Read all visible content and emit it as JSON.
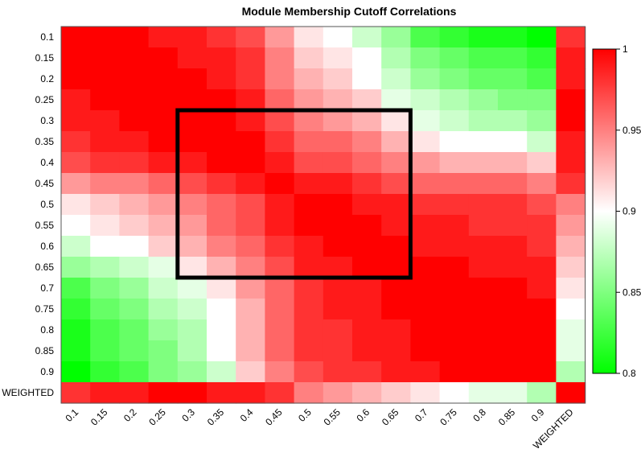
{
  "chart_data": {
    "type": "heatmap",
    "title": "Module Membership Cutoff Correlations",
    "labels": [
      "0.1",
      "0.15",
      "0.2",
      "0.25",
      "0.3",
      "0.35",
      "0.4",
      "0.45",
      "0.5",
      "0.55",
      "0.6",
      "0.65",
      "0.7",
      "0.75",
      "0.8",
      "0.85",
      "0.9",
      "WEIGHTED"
    ],
    "values": [
      [
        1.0,
        1.0,
        1.0,
        0.99,
        0.99,
        0.98,
        0.97,
        0.94,
        0.91,
        0.9,
        0.88,
        0.86,
        0.83,
        0.82,
        0.81,
        0.81,
        0.8,
        0.98
      ],
      [
        1.0,
        1.0,
        1.0,
        1.0,
        0.99,
        0.99,
        0.98,
        0.95,
        0.92,
        0.91,
        0.9,
        0.87,
        0.85,
        0.84,
        0.83,
        0.83,
        0.82,
        0.99
      ],
      [
        1.0,
        1.0,
        1.0,
        1.0,
        1.0,
        0.99,
        0.98,
        0.95,
        0.93,
        0.92,
        0.9,
        0.88,
        0.86,
        0.85,
        0.84,
        0.84,
        0.83,
        0.99
      ],
      [
        0.99,
        1.0,
        1.0,
        1.0,
        1.0,
        1.0,
        0.99,
        0.96,
        0.94,
        0.93,
        0.92,
        0.89,
        0.88,
        0.87,
        0.86,
        0.85,
        0.85,
        1.0
      ],
      [
        0.99,
        0.99,
        1.0,
        1.0,
        1.0,
        1.0,
        0.99,
        0.97,
        0.95,
        0.94,
        0.93,
        0.91,
        0.89,
        0.88,
        0.87,
        0.87,
        0.86,
        1.0
      ],
      [
        0.98,
        0.99,
        0.99,
        1.0,
        1.0,
        1.0,
        1.0,
        0.98,
        0.96,
        0.96,
        0.95,
        0.93,
        0.91,
        0.9,
        0.9,
        0.9,
        0.88,
        0.99
      ],
      [
        0.97,
        0.98,
        0.98,
        0.99,
        0.99,
        1.0,
        1.0,
        0.99,
        0.97,
        0.97,
        0.96,
        0.95,
        0.94,
        0.93,
        0.93,
        0.93,
        0.92,
        0.99
      ],
      [
        0.94,
        0.95,
        0.95,
        0.96,
        0.97,
        0.98,
        0.99,
        1.0,
        0.99,
        0.99,
        0.98,
        0.97,
        0.96,
        0.96,
        0.96,
        0.96,
        0.95,
        0.98
      ],
      [
        0.91,
        0.92,
        0.93,
        0.94,
        0.95,
        0.96,
        0.97,
        0.99,
        1.0,
        1.0,
        0.99,
        0.99,
        0.98,
        0.98,
        0.98,
        0.98,
        0.97,
        0.95
      ],
      [
        0.9,
        0.91,
        0.92,
        0.93,
        0.94,
        0.96,
        0.97,
        0.99,
        1.0,
        1.0,
        1.0,
        0.99,
        0.99,
        0.99,
        0.98,
        0.98,
        0.98,
        0.94
      ],
      [
        0.88,
        0.9,
        0.9,
        0.92,
        0.93,
        0.95,
        0.96,
        0.98,
        0.99,
        1.0,
        1.0,
        1.0,
        0.99,
        0.99,
        0.99,
        0.99,
        0.98,
        0.93
      ],
      [
        0.86,
        0.87,
        0.88,
        0.89,
        0.91,
        0.93,
        0.95,
        0.97,
        0.99,
        0.99,
        1.0,
        1.0,
        1.0,
        1.0,
        0.99,
        0.99,
        0.99,
        0.92
      ],
      [
        0.83,
        0.85,
        0.86,
        0.88,
        0.89,
        0.91,
        0.94,
        0.96,
        0.98,
        0.99,
        0.99,
        1.0,
        1.0,
        1.0,
        1.0,
        1.0,
        0.99,
        0.91
      ],
      [
        0.82,
        0.84,
        0.85,
        0.87,
        0.88,
        0.9,
        0.93,
        0.96,
        0.98,
        0.99,
        0.99,
        1.0,
        1.0,
        1.0,
        1.0,
        1.0,
        1.0,
        0.9
      ],
      [
        0.81,
        0.83,
        0.84,
        0.86,
        0.87,
        0.9,
        0.93,
        0.96,
        0.98,
        0.98,
        0.99,
        0.99,
        1.0,
        1.0,
        1.0,
        1.0,
        1.0,
        0.89
      ],
      [
        0.81,
        0.83,
        0.84,
        0.85,
        0.87,
        0.9,
        0.93,
        0.96,
        0.98,
        0.98,
        0.99,
        0.99,
        1.0,
        1.0,
        1.0,
        1.0,
        1.0,
        0.89
      ],
      [
        0.8,
        0.82,
        0.83,
        0.85,
        0.86,
        0.88,
        0.92,
        0.95,
        0.97,
        0.98,
        0.98,
        0.99,
        0.99,
        1.0,
        1.0,
        1.0,
        1.0,
        0.87
      ],
      [
        0.98,
        0.99,
        0.99,
        1.0,
        1.0,
        0.99,
        0.99,
        0.98,
        0.95,
        0.94,
        0.93,
        0.92,
        0.91,
        0.9,
        0.89,
        0.89,
        0.87,
        1.0
      ]
    ],
    "highlight": {
      "rows": [
        "0.3",
        "0.65"
      ],
      "cols": [
        "0.3",
        "0.65"
      ]
    },
    "colorbar": {
      "ticks": [
        "1",
        "0.95",
        "0.9",
        "0.85",
        "0.8"
      ],
      "range": [
        0.8,
        1.0
      ],
      "colors": {
        "low": "#00ff00",
        "mid": "#ffffff",
        "high": "#ff0000"
      },
      "placement": "right"
    }
  }
}
